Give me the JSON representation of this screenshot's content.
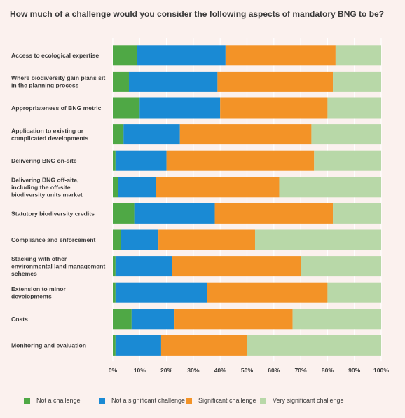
{
  "title": "How much of a challenge would you consider the following aspects of mandatory BNG to be?",
  "colors": {
    "background": "#fbf1ee",
    "grid": "#ffffff",
    "series": [
      "#4fa845",
      "#1a8ad4",
      "#f39327",
      "#b8d8a8"
    ],
    "text": "#3a3a3a"
  },
  "chart_data": {
    "type": "bar",
    "orientation": "horizontal",
    "stacked": true,
    "title": "How much of a challenge would you consider the following aspects of mandatory BNG to be?",
    "xlim": [
      0,
      100
    ],
    "x_tick_labels": [
      "0%",
      "10%",
      "20%",
      "30%",
      "40%",
      "50%",
      "60%",
      "70%",
      "80%",
      "90%",
      "100%"
    ],
    "grid": true,
    "legend_position": "bottom",
    "categories": [
      [
        "Access to ecological expertise"
      ],
      [
        "Where biodiversity gain plans sit",
        "in the planning process"
      ],
      [
        "Appropriateness of BNG metric"
      ],
      [
        "Application to existing or",
        "complicated developments"
      ],
      [
        "Delivering BNG on-site"
      ],
      [
        "Delivering BNG off-site,",
        "including the off-site",
        "biodiversity units market"
      ],
      [
        "Statutory biodiversity credits"
      ],
      [
        "Compliance and enforcement"
      ],
      [
        "Stacking with other",
        "environmental land management",
        "schemes"
      ],
      [
        "Extension to minor",
        "developments"
      ],
      [
        "Costs"
      ],
      [
        "Monitoring and evaluation"
      ]
    ],
    "series": [
      {
        "name": "Not a challenge",
        "values": [
          9,
          6,
          10,
          4,
          1,
          2,
          8,
          3,
          1,
          1,
          7,
          1
        ]
      },
      {
        "name": "Not a significant challenge",
        "values": [
          33,
          33,
          30,
          21,
          19,
          14,
          30,
          14,
          21,
          34,
          16,
          17
        ]
      },
      {
        "name": "Significant challenge",
        "values": [
          41,
          43,
          40,
          49,
          55,
          46,
          44,
          36,
          48,
          45,
          44,
          32
        ]
      },
      {
        "name": "Very significant challenge",
        "values": [
          17,
          18,
          20,
          26,
          25,
          38,
          18,
          47,
          30,
          20,
          33,
          50
        ]
      }
    ]
  }
}
